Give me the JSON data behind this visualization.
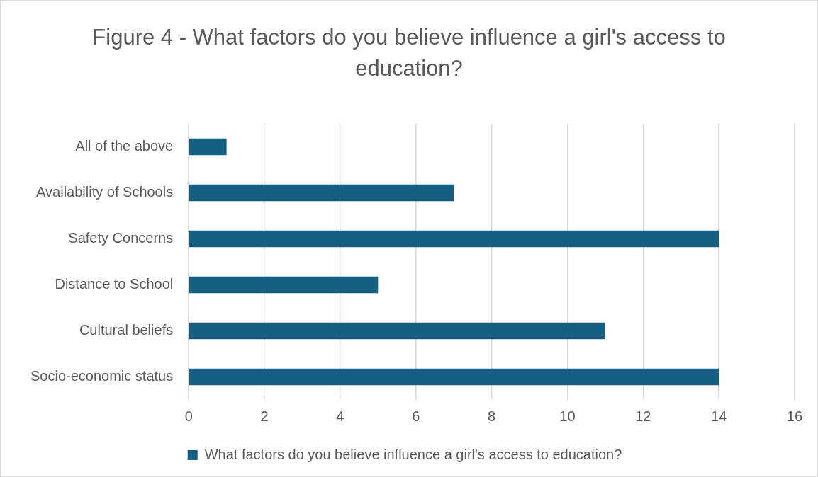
{
  "chart_data": {
    "type": "bar",
    "title": "Figure 4 - What factors do you believe influence a girl's access to education?",
    "orientation": "horizontal",
    "categories": [
      "All of the above",
      "Availability of Schools",
      "Safety Concerns",
      "Distance to School",
      "Cultural beliefs",
      "Socio-economic status"
    ],
    "series": [
      {
        "name": "What factors do you believe influence a girl's access to education?",
        "color": "#156082",
        "values": [
          1,
          7,
          14,
          5,
          11,
          14
        ]
      }
    ],
    "xlim": [
      0,
      16
    ],
    "xticks": [
      0,
      2,
      4,
      6,
      8,
      10,
      12,
      14,
      16
    ],
    "grid": "x",
    "legend": "bottom"
  }
}
